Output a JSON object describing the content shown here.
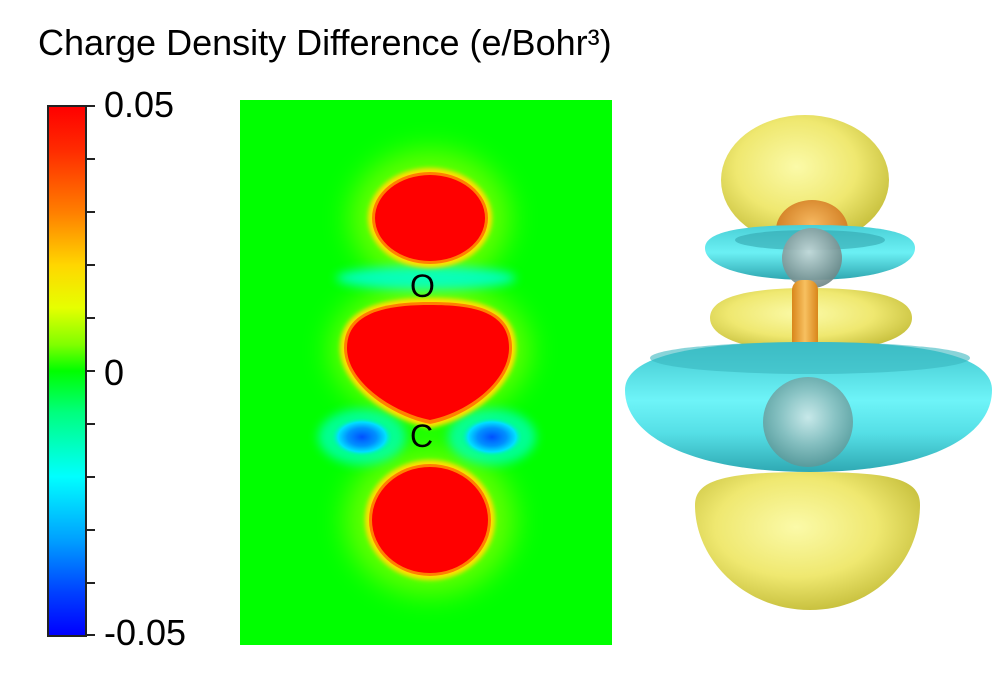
{
  "title": "Charge Density Difference (e/Bohr³)",
  "colorbar": {
    "max_label": "0.05",
    "mid_label": "0",
    "min_label": "-0.05",
    "max": 0.05,
    "min": -0.05,
    "colors": [
      "#ff0000",
      "#ff7f00",
      "#ffd700",
      "#00ff00",
      "#00ffff",
      "#0040ff",
      "#0000ff"
    ]
  },
  "slice": {
    "atoms": [
      {
        "name": "atom-label-oxygen",
        "label": "O"
      },
      {
        "name": "atom-label-carbon",
        "label": "C"
      }
    ],
    "background_color": "#00ff00",
    "positive_color": "#ff0000",
    "negative_color": "#0064ff"
  },
  "isosurface": {
    "positive_color": "#f2f07a",
    "negative_color": "#55d8dc",
    "bond_color": "#f0a830"
  }
}
